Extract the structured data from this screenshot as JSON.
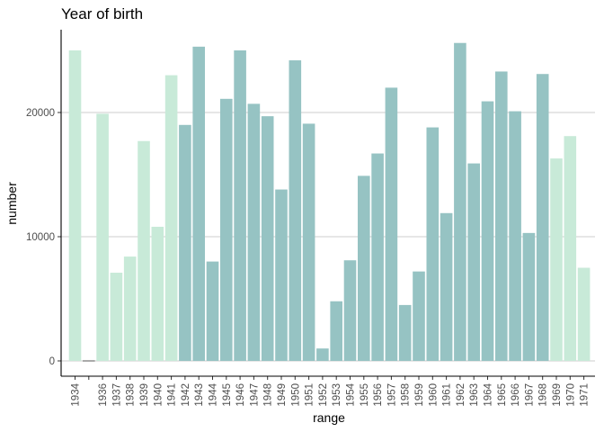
{
  "chart_data": {
    "type": "bar",
    "title": "Year of birth",
    "xlabel": "range",
    "ylabel": "number",
    "ylim": [
      0,
      26500
    ],
    "yticks": [
      0,
      10000,
      20000
    ],
    "ytick_labels": [
      "0",
      "10000",
      "20000"
    ],
    "grid": "horizontal major lines",
    "legend": "none",
    "colors": {
      "highlighted": "#96c3c3",
      "muted": "#c8ead8"
    },
    "categories": [
      "1934",
      "",
      "1936",
      "1937",
      "1938",
      "1939",
      "1940",
      "1941",
      "1942",
      "1943",
      "1944",
      "1945",
      "1946",
      "1947",
      "1948",
      "1949",
      "1950",
      "1951",
      "1952",
      "1953",
      "1954",
      "1955",
      "1956",
      "1957",
      "1958",
      "1959",
      "1960",
      "1961",
      "1962",
      "1963",
      "1964",
      "1965",
      "1966",
      "1967",
      "1968",
      "1969",
      "1970",
      "1971"
    ],
    "values": [
      25000,
      0,
      19900,
      7100,
      8400,
      17700,
      10800,
      23000,
      19000,
      25300,
      8000,
      21100,
      25000,
      20700,
      19700,
      13800,
      24200,
      19100,
      1000,
      4800,
      8100,
      14900,
      16700,
      22000,
      4500,
      7200,
      18800,
      11900,
      25600,
      15900,
      20900,
      23300,
      20100,
      10300,
      23100,
      16300,
      18100,
      7500
    ],
    "highlight": [
      false,
      false,
      false,
      false,
      false,
      false,
      false,
      false,
      true,
      true,
      true,
      true,
      true,
      true,
      true,
      true,
      true,
      true,
      true,
      true,
      true,
      true,
      true,
      true,
      true,
      true,
      true,
      true,
      true,
      true,
      true,
      true,
      true,
      true,
      true,
      false,
      false,
      false
    ]
  }
}
